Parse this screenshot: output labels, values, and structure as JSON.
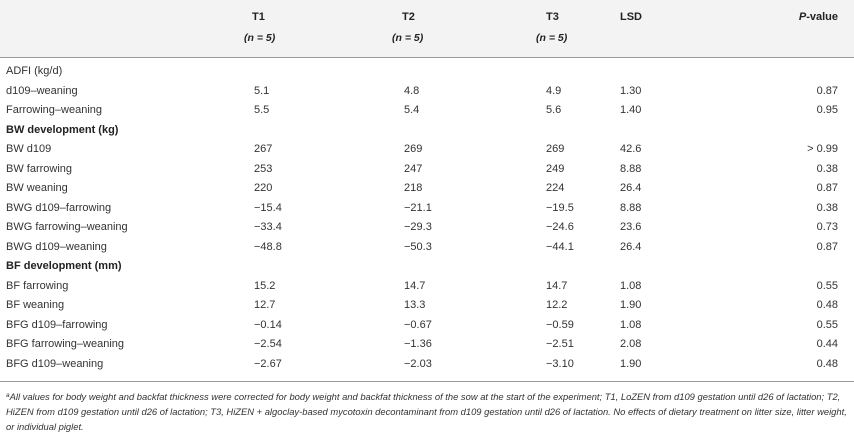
{
  "headers": {
    "col1": "T1",
    "col2": "T2",
    "col3": "T3",
    "col4": "LSD",
    "col5_italic": "P",
    "col5_rest": "-value",
    "n1": "(n = 5)",
    "n2": "(n = 5)",
    "n3": "(n = 5)"
  },
  "rows": [
    {
      "label": "ADFI (kg/d)",
      "t1": "",
      "t2": "",
      "t3": "",
      "lsd": "",
      "p": ""
    },
    {
      "label": "d109–weaning",
      "t1": "5.1",
      "t2": "4.8",
      "t3": "4.9",
      "lsd": "1.30",
      "p": "0.87"
    },
    {
      "label": "Farrowing–weaning",
      "t1": "5.5",
      "t2": "5.4",
      "t3": "5.6",
      "lsd": "1.40",
      "p": "0.95"
    },
    {
      "label": "BW development (kg)",
      "t1": "",
      "t2": "",
      "t3": "",
      "lsd": "",
      "p": ""
    },
    {
      "label": "BW d109",
      "t1": "267",
      "t2": "269",
      "t3": "269",
      "lsd": "42.6",
      "p": "> 0.99"
    },
    {
      "label": "BW farrowing",
      "t1": "253",
      "t2": "247",
      "t3": "249",
      "lsd": "8.88",
      "p": "0.38"
    },
    {
      "label": "BW weaning",
      "t1": "220",
      "t2": "218",
      "t3": "224",
      "lsd": "26.4",
      "p": "0.87"
    },
    {
      "label": "BWG d109–farrowing",
      "t1": "−15.4",
      "t2": "−21.1",
      "t3": "−19.5",
      "lsd": "8.88",
      "p": "0.38"
    },
    {
      "label": "BWG farrowing–weaning",
      "t1": "−33.4",
      "t2": "−29.3",
      "t3": "−24.6",
      "lsd": "23.6",
      "p": "0.73"
    },
    {
      "label": "BWG d109–weaning",
      "t1": "−48.8",
      "t2": "−50.3",
      "t3": "−44.1",
      "lsd": "26.4",
      "p": "0.87"
    },
    {
      "label": "BF development (mm)",
      "t1": "",
      "t2": "",
      "t3": "",
      "lsd": "",
      "p": ""
    },
    {
      "label": "BF farrowing",
      "t1": "15.2",
      "t2": "14.7",
      "t3": "14.7",
      "lsd": "1.08",
      "p": "0.55"
    },
    {
      "label": "BF weaning",
      "t1": "12.7",
      "t2": "13.3",
      "t3": "12.2",
      "lsd": "1.90",
      "p": "0.48"
    },
    {
      "label": "BFG d109–farrowing",
      "t1": "−0.14",
      "t2": "−0.67",
      "t3": "−0.59",
      "lsd": "1.08",
      "p": "0.55"
    },
    {
      "label": "BFG farrowing–weaning",
      "t1": "−2.54",
      "t2": "−1.36",
      "t3": "−2.51",
      "lsd": "2.08",
      "p": "0.44"
    },
    {
      "label": "BFG d109–weaning",
      "t1": "−2.67",
      "t2": "−2.03",
      "t3": "−3.10",
      "lsd": "1.90",
      "p": "0.48"
    }
  ],
  "footnote": {
    "marker": "a",
    "text": "All values for body weight and backfat thickness were corrected for body weight and backfat thickness of the sow at the start of the experiment; T1, LoZEN from d109 gestation until d26 of lactation; T2, HiZEN from d109 gestation until d26 of lactation; T3, HiZEN + algoclay-based mycotoxin decontaminant from d109 gestation until d26 of lactation. No effects of dietary treatment on litter size, litter weight, or individual piglet."
  }
}
